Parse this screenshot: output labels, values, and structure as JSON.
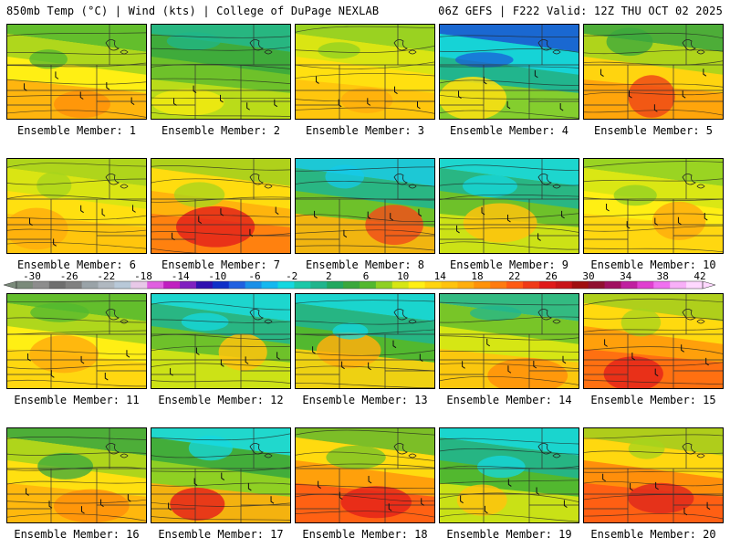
{
  "header": {
    "left": "850mb Temp (°C) | Wind (kts) | College of DuPage NEXLAB",
    "right": "06Z GEFS | F222 Valid: 12Z THU OCT 02 2025"
  },
  "caption_prefix": "Ensemble Member: ",
  "members": [
    {
      "label": "Ensemble Member: 1",
      "palette": [
        "#52b82f",
        "#a6d41d",
        "#ffef14",
        "#ffae0d",
        "#ff9209"
      ]
    },
    {
      "label": "Ensemble Member: 2",
      "palette": [
        "#1fb58a",
        "#3aa83d",
        "#6ec12a",
        "#c2df17",
        "#f2ea10"
      ]
    },
    {
      "label": "Ensemble Member: 3",
      "palette": [
        "#8fd023",
        "#d6e614",
        "#ffe010",
        "#ffc30d",
        "#ffae0d"
      ]
    },
    {
      "label": "Ensemble Member: 4",
      "palette": [
        "#1a5fd8",
        "#15d6de",
        "#21b58d",
        "#8fd023",
        "#ffe010"
      ]
    },
    {
      "label": "Ensemble Member: 5",
      "palette": [
        "#3aa83d",
        "#a6d41d",
        "#ffd40f",
        "#ffa00b",
        "#f04a16"
      ]
    },
    {
      "label": "Ensemble Member: 6",
      "palette": [
        "#a6d41d",
        "#d6e614",
        "#ffe010",
        "#ffc30d",
        "#ffae0d"
      ]
    },
    {
      "label": "Ensemble Member: 7",
      "palette": [
        "#a6d41d",
        "#ffe010",
        "#ffb40d",
        "#ff7b10",
        "#e5241a"
      ]
    },
    {
      "label": "Ensemble Member: 8",
      "palette": [
        "#14c9e8",
        "#21b58d",
        "#6ec12a",
        "#ffb40d",
        "#f0501a"
      ]
    },
    {
      "label": "Ensemble Member: 9",
      "palette": [
        "#14d8e0",
        "#21b58d",
        "#6ec12a",
        "#d6e614",
        "#ffc30d"
      ]
    },
    {
      "label": "Ensemble Member: 10",
      "palette": [
        "#8fd023",
        "#d6e614",
        "#ffef14",
        "#ffd40f",
        "#ffae0d"
      ]
    },
    {
      "label": "Ensemble Member: 11",
      "palette": [
        "#52b82f",
        "#a6d41d",
        "#ffef14",
        "#ffd40f",
        "#ffae0d"
      ]
    },
    {
      "label": "Ensemble Member: 12",
      "palette": [
        "#14d8e0",
        "#21b58d",
        "#6ec12a",
        "#d6e614",
        "#ffc30d"
      ]
    },
    {
      "label": "Ensemble Member: 13",
      "palette": [
        "#14d8e0",
        "#21b58d",
        "#52b82f",
        "#ffd40f",
        "#ffae0d"
      ]
    },
    {
      "label": "Ensemble Member: 14",
      "palette": [
        "#21b58d",
        "#6ec12a",
        "#d6e614",
        "#ffc30d",
        "#ff8f0b"
      ]
    },
    {
      "label": "Ensemble Member: 15",
      "palette": [
        "#a6d41d",
        "#ffe010",
        "#ffa00b",
        "#ff6a12",
        "#e5241a"
      ]
    },
    {
      "label": "Ensemble Member: 16",
      "palette": [
        "#3aa83d",
        "#a6d41d",
        "#ffe010",
        "#ffb40d",
        "#ff8f0b"
      ]
    },
    {
      "label": "Ensemble Member: 17",
      "palette": [
        "#14d8e0",
        "#3aa83d",
        "#8fd023",
        "#ffae0d",
        "#e5241a"
      ]
    },
    {
      "label": "Ensemble Member: 18",
      "palette": [
        "#6ec12a",
        "#ffe010",
        "#ffa00b",
        "#ff5a14",
        "#e5241a"
      ]
    },
    {
      "label": "Ensemble Member: 19",
      "palette": [
        "#14d8e0",
        "#21b58d",
        "#52b82f",
        "#d6e614",
        "#ffc30d"
      ]
    },
    {
      "label": "Ensemble Member: 20",
      "palette": [
        "#a6d41d",
        "#ffe010",
        "#ff8f0b",
        "#ff5a14",
        "#e02a1c"
      ]
    }
  ],
  "colorbar": {
    "ticks": [
      "-30",
      "-26",
      "-22",
      "-18",
      "-14",
      "-10",
      "-6",
      "-2",
      "2",
      "6",
      "10",
      "14",
      "18",
      "22",
      "26",
      "30",
      "34",
      "38",
      "42"
    ],
    "colors": [
      "#7a8a7a",
      "#8d8d8d",
      "#6e6e6e",
      "#808080",
      "#9aa3a8",
      "#b0b8c0",
      "#b8c8d8",
      "#e8c8e8",
      "#e060e0",
      "#c020c0",
      "#8020c0",
      "#3010b0",
      "#1030c8",
      "#2060e0",
      "#1a90e8",
      "#14b8f0",
      "#14d8e0",
      "#1cc8a8",
      "#21b58d",
      "#22a860",
      "#3aa83d",
      "#52b82f",
      "#8fd023",
      "#d6e614",
      "#ffef14",
      "#ffd40f",
      "#ffc30d",
      "#ffae0d",
      "#ff9209",
      "#ff7b10",
      "#ff5a14",
      "#f03a18",
      "#e01a1a",
      "#c81418",
      "#a01010",
      "#901030",
      "#a01060",
      "#c020a0",
      "#e040d0",
      "#f070f0",
      "#f8b0f8",
      "#ffd8ff"
    ]
  }
}
